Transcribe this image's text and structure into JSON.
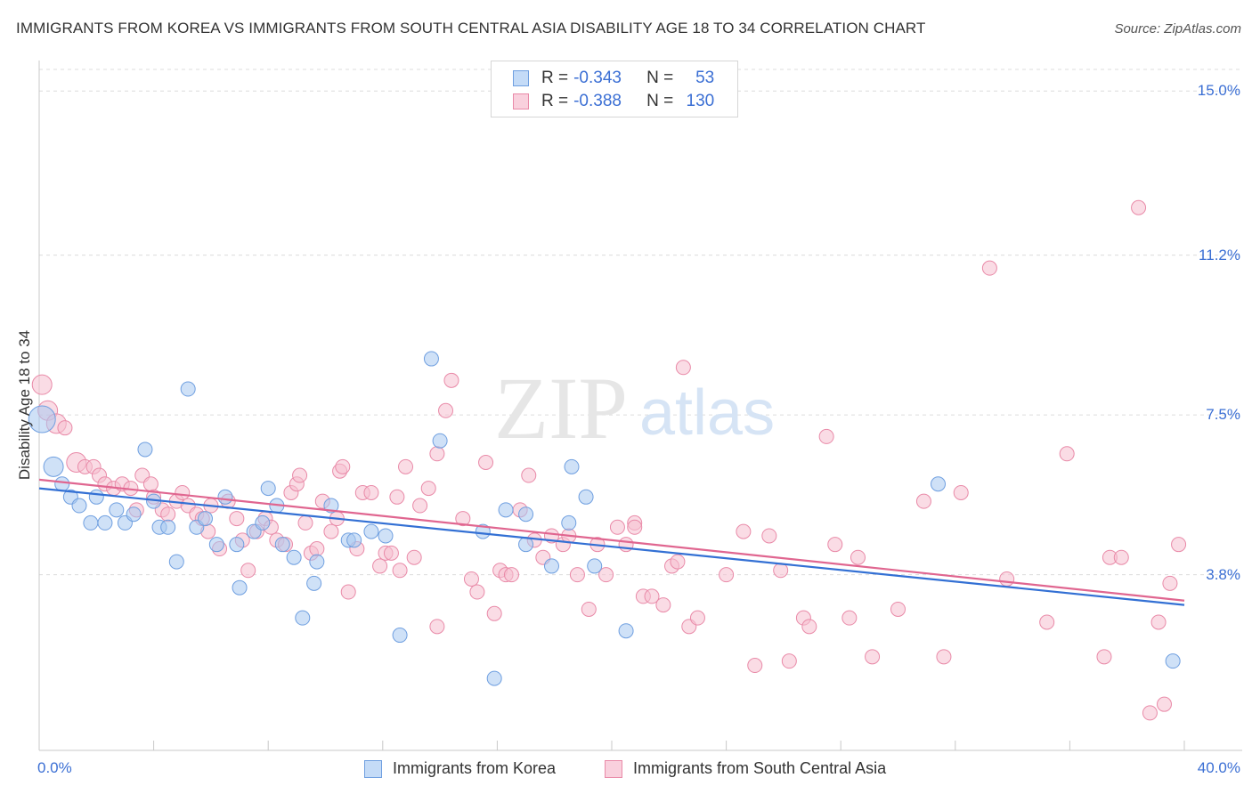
{
  "title": "IMMIGRANTS FROM KOREA VS IMMIGRANTS FROM SOUTH CENTRAL ASIA DISABILITY AGE 18 TO 34 CORRELATION CHART",
  "source": "Source: ZipAtlas.com",
  "watermark": {
    "zip": "ZIP",
    "atlas": "atlas"
  },
  "legend": {
    "rows": [
      {
        "r_label": "R = ",
        "r_value": "-0.343",
        "n_label": "N = ",
        "n_value": "53"
      },
      {
        "r_label": "R = ",
        "r_value": "-0.388",
        "n_label": "N = ",
        "n_value": "130"
      }
    ]
  },
  "colors": {
    "korea_fill": "#a8c8f0",
    "korea_stroke": "#6f9fe0",
    "korea_line": "#3370d4",
    "sca_fill": "#f6bfd0",
    "sca_stroke": "#e98aa8",
    "sca_line": "#e06690",
    "tick_text": "#3b6fd4"
  },
  "chart_data": {
    "type": "scatter",
    "title": "IMMIGRANTS FROM KOREA VS IMMIGRANTS FROM SOUTH CENTRAL ASIA DISABILITY AGE 18 TO 34 CORRELATION CHART",
    "xlabel": "",
    "ylabel": "Disability Age 18 to 34",
    "xlim": [
      0,
      40
    ],
    "ylim": [
      0,
      15.5
    ],
    "x_tick_labels": [
      "0.0%",
      "40.0%"
    ],
    "y_ticks": [
      3.8,
      7.5,
      11.2,
      15.0
    ],
    "y_tick_labels": [
      "3.8%",
      "7.5%",
      "11.2%",
      "15.0%"
    ],
    "grid": true,
    "legend_position": "bottom",
    "series": [
      {
        "name": "Immigrants from Korea",
        "r": -0.343,
        "n": 53,
        "trend": [
          [
            0,
            5.8
          ],
          [
            40,
            3.1
          ]
        ],
        "points": [
          [
            0.1,
            7.4,
            3
          ],
          [
            0.5,
            6.3,
            2
          ],
          [
            0.8,
            5.9,
            1
          ],
          [
            1.1,
            5.6,
            1
          ],
          [
            1.4,
            5.4,
            1
          ],
          [
            1.8,
            5.0,
            1
          ],
          [
            2.0,
            5.6,
            1
          ],
          [
            2.3,
            5.0,
            1
          ],
          [
            2.7,
            5.3,
            1
          ],
          [
            3.0,
            5.0,
            1
          ],
          [
            3.3,
            5.2,
            1
          ],
          [
            3.7,
            6.7,
            1
          ],
          [
            4.0,
            5.5,
            1
          ],
          [
            4.2,
            4.9,
            1
          ],
          [
            4.5,
            4.9,
            1
          ],
          [
            4.8,
            4.1,
            1
          ],
          [
            5.2,
            8.1,
            1
          ],
          [
            5.5,
            4.9,
            1
          ],
          [
            5.8,
            5.1,
            1
          ],
          [
            6.2,
            4.5,
            1
          ],
          [
            6.5,
            5.6,
            1
          ],
          [
            6.9,
            4.5,
            1
          ],
          [
            7.0,
            3.5,
            1
          ],
          [
            7.5,
            4.8,
            1
          ],
          [
            7.8,
            5.0,
            1
          ],
          [
            8.0,
            5.8,
            1
          ],
          [
            8.3,
            5.4,
            1
          ],
          [
            8.5,
            4.5,
            1
          ],
          [
            8.9,
            4.2,
            1
          ],
          [
            9.2,
            2.8,
            1
          ],
          [
            9.6,
            3.6,
            1
          ],
          [
            9.7,
            4.1,
            1
          ],
          [
            10.2,
            5.4,
            1
          ],
          [
            10.8,
            4.6,
            1
          ],
          [
            11.0,
            4.6,
            1
          ],
          [
            11.6,
            4.8,
            1
          ],
          [
            12.1,
            4.7,
            1
          ],
          [
            12.6,
            2.4,
            1
          ],
          [
            13.7,
            8.8,
            1
          ],
          [
            14.0,
            6.9,
            1
          ],
          [
            15.5,
            4.8,
            1
          ],
          [
            15.9,
            1.4,
            1
          ],
          [
            16.3,
            5.3,
            1
          ],
          [
            17.0,
            5.2,
            1
          ],
          [
            17.0,
            4.5,
            1
          ],
          [
            17.9,
            4.0,
            1
          ],
          [
            18.5,
            5.0,
            1
          ],
          [
            18.6,
            6.3,
            1
          ],
          [
            19.1,
            5.6,
            1
          ],
          [
            19.4,
            4.0,
            1
          ],
          [
            20.5,
            2.5,
            1
          ],
          [
            31.4,
            5.9,
            1
          ],
          [
            39.6,
            1.8,
            1
          ]
        ]
      },
      {
        "name": "Immigrants from South Central Asia",
        "r": -0.388,
        "n": 130,
        "trend": [
          [
            0,
            6.0
          ],
          [
            40,
            3.2
          ]
        ],
        "points": [
          [
            0.1,
            8.2,
            2
          ],
          [
            0.3,
            7.6,
            2
          ],
          [
            0.6,
            7.3,
            2
          ],
          [
            0.9,
            7.2,
            1
          ],
          [
            1.3,
            6.4,
            2
          ],
          [
            1.6,
            6.3,
            1
          ],
          [
            1.9,
            6.3,
            1
          ],
          [
            2.1,
            6.1,
            1
          ],
          [
            2.3,
            5.9,
            1
          ],
          [
            2.6,
            5.8,
            1
          ],
          [
            2.9,
            5.9,
            1
          ],
          [
            3.2,
            5.8,
            1
          ],
          [
            3.4,
            5.3,
            1
          ],
          [
            3.6,
            6.1,
            1
          ],
          [
            3.9,
            5.9,
            1
          ],
          [
            4.0,
            5.6,
            1
          ],
          [
            4.3,
            5.3,
            1
          ],
          [
            4.5,
            5.2,
            1
          ],
          [
            4.8,
            5.5,
            1
          ],
          [
            5.0,
            5.7,
            1
          ],
          [
            5.2,
            5.4,
            1
          ],
          [
            5.5,
            5.2,
            1
          ],
          [
            5.7,
            5.1,
            1
          ],
          [
            5.9,
            4.8,
            1
          ],
          [
            6.0,
            5.4,
            1
          ],
          [
            6.3,
            4.4,
            1
          ],
          [
            6.6,
            5.5,
            1
          ],
          [
            6.9,
            5.1,
            1
          ],
          [
            7.1,
            4.6,
            1
          ],
          [
            7.3,
            3.9,
            1
          ],
          [
            7.6,
            4.8,
            1
          ],
          [
            7.9,
            5.1,
            1
          ],
          [
            8.1,
            4.9,
            1
          ],
          [
            8.3,
            4.6,
            1
          ],
          [
            8.6,
            4.5,
            1
          ],
          [
            8.8,
            5.7,
            1
          ],
          [
            9.0,
            5.9,
            1
          ],
          [
            9.3,
            5.0,
            1
          ],
          [
            9.5,
            4.3,
            1
          ],
          [
            9.7,
            4.4,
            1
          ],
          [
            9.9,
            5.5,
            1
          ],
          [
            10.2,
            4.8,
            1
          ],
          [
            10.4,
            5.1,
            1
          ],
          [
            10.5,
            6.2,
            1
          ],
          [
            10.6,
            6.3,
            1
          ],
          [
            10.8,
            3.4,
            1
          ],
          [
            11.1,
            4.4,
            1
          ],
          [
            11.3,
            5.7,
            1
          ],
          [
            11.6,
            5.7,
            1
          ],
          [
            11.9,
            4.0,
            1
          ],
          [
            12.1,
            4.3,
            1
          ],
          [
            12.3,
            4.3,
            1
          ],
          [
            12.5,
            5.6,
            1
          ],
          [
            12.6,
            3.9,
            1
          ],
          [
            12.8,
            6.3,
            1
          ],
          [
            13.1,
            4.2,
            1
          ],
          [
            13.3,
            5.4,
            1
          ],
          [
            13.6,
            5.8,
            1
          ],
          [
            13.9,
            2.6,
            1
          ],
          [
            14.2,
            7.6,
            1
          ],
          [
            14.4,
            8.3,
            1
          ],
          [
            14.8,
            5.1,
            1
          ],
          [
            15.1,
            3.7,
            1
          ],
          [
            15.3,
            3.4,
            1
          ],
          [
            15.6,
            6.4,
            1
          ],
          [
            15.9,
            2.9,
            1
          ],
          [
            16.1,
            3.9,
            1
          ],
          [
            16.3,
            3.8,
            1
          ],
          [
            16.5,
            3.8,
            1
          ],
          [
            16.8,
            5.3,
            1
          ],
          [
            17.1,
            6.1,
            1
          ],
          [
            17.3,
            4.6,
            1
          ],
          [
            17.6,
            4.2,
            1
          ],
          [
            17.9,
            4.7,
            1
          ],
          [
            18.3,
            4.5,
            1
          ],
          [
            18.5,
            4.7,
            1
          ],
          [
            18.8,
            3.8,
            1
          ],
          [
            19.2,
            3.0,
            1
          ],
          [
            19.5,
            4.5,
            1
          ],
          [
            19.8,
            3.8,
            1
          ],
          [
            20.2,
            4.9,
            1
          ],
          [
            20.5,
            4.5,
            1
          ],
          [
            20.8,
            5.0,
            1
          ],
          [
            21.1,
            3.3,
            1
          ],
          [
            21.4,
            3.3,
            1
          ],
          [
            21.8,
            3.1,
            1
          ],
          [
            22.1,
            4.0,
            1
          ],
          [
            22.3,
            4.1,
            1
          ],
          [
            22.5,
            8.6,
            1
          ],
          [
            22.7,
            2.6,
            1
          ],
          [
            23.0,
            2.8,
            1
          ],
          [
            24.0,
            3.8,
            1
          ],
          [
            24.6,
            4.8,
            1
          ],
          [
            25.0,
            1.7,
            1
          ],
          [
            25.5,
            4.7,
            1
          ],
          [
            25.9,
            3.9,
            1
          ],
          [
            26.2,
            1.8,
            1
          ],
          [
            26.7,
            2.8,
            1
          ],
          [
            26.9,
            2.6,
            1
          ],
          [
            27.5,
            7.0,
            1
          ],
          [
            27.8,
            4.5,
            1
          ],
          [
            28.3,
            2.8,
            1
          ],
          [
            28.6,
            4.2,
            1
          ],
          [
            29.1,
            1.9,
            1
          ],
          [
            30.0,
            3.0,
            1
          ],
          [
            30.9,
            5.5,
            1
          ],
          [
            31.6,
            1.9,
            1
          ],
          [
            32.2,
            5.7,
            1
          ],
          [
            33.2,
            10.9,
            1
          ],
          [
            33.8,
            3.7,
            1
          ],
          [
            35.2,
            2.7,
            1
          ],
          [
            35.9,
            6.6,
            1
          ],
          [
            37.2,
            1.9,
            1
          ],
          [
            37.4,
            4.2,
            1
          ],
          [
            37.8,
            4.2,
            1
          ],
          [
            38.4,
            12.3,
            1
          ],
          [
            38.8,
            0.6,
            1
          ],
          [
            39.1,
            2.7,
            1
          ],
          [
            39.3,
            0.8,
            1
          ],
          [
            39.5,
            3.6,
            1
          ],
          [
            39.8,
            4.5,
            1
          ],
          [
            13.9,
            6.6,
            1
          ],
          [
            20.8,
            4.9,
            1
          ],
          [
            9.1,
            6.1,
            1
          ]
        ]
      }
    ]
  }
}
